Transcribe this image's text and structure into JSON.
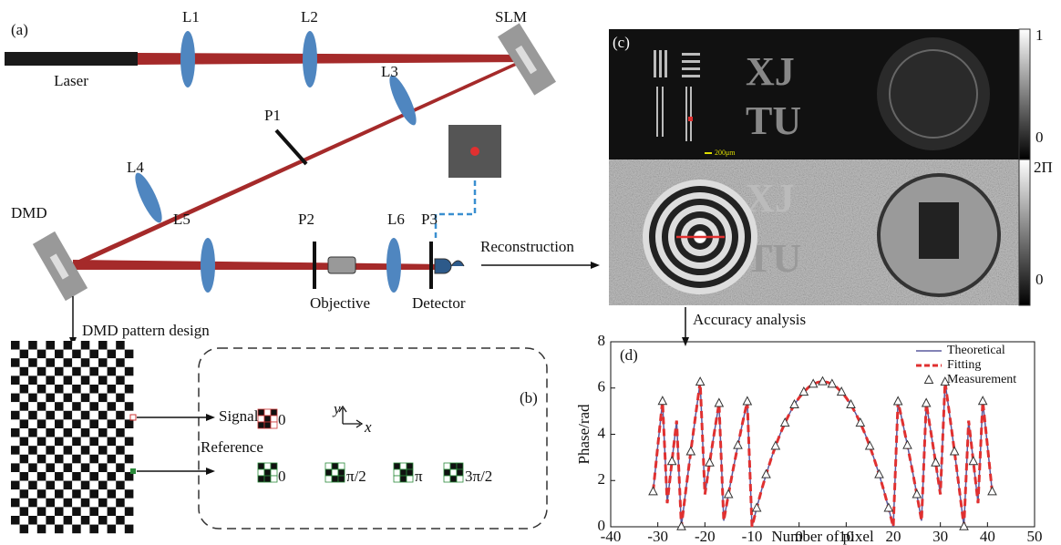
{
  "panel_a": {
    "label": "(a)",
    "laser": "Laser",
    "l1": "L1",
    "l2": "L2",
    "slm": "SLM",
    "l3": "L3",
    "p1": "P1",
    "l4": "L4",
    "l5": "L5",
    "dmd": "DMD",
    "p2": "P2",
    "l6": "L6",
    "p3": "P3",
    "objective": "Objective",
    "detector": "Detector",
    "reconstruction": "Reconstruction",
    "dmd_pattern": "DMD pattern design",
    "accuracy": "Accuracy analysis"
  },
  "panel_b": {
    "label": "(b)",
    "signal": "Signal",
    "signal_phase": "0",
    "reference": "Reference",
    "reference_phases": [
      "0",
      "π/2",
      "π",
      "3π/2"
    ],
    "axis_y": "y",
    "axis_x": "x"
  },
  "panel_c": {
    "label": "(c)",
    "scale_bar": "200μm",
    "image_text": [
      "XJ",
      "TU"
    ],
    "amplitude_colorbar": [
      "1",
      "0"
    ],
    "phase_colorbar": [
      "2Π",
      "0"
    ]
  },
  "chart_data": {
    "type": "line",
    "label": "(d)",
    "xlabel": "Number of pixel",
    "ylabel": "Phase/rad",
    "xlim": [
      -40,
      50
    ],
    "xticks": [
      -40,
      -30,
      -20,
      -10,
      0,
      10,
      20,
      30,
      40,
      50
    ],
    "ylim": [
      0,
      8
    ],
    "yticks": [
      0,
      2,
      4,
      6,
      8
    ],
    "legend": "upper right",
    "x": [
      -31,
      -30,
      -29,
      -28,
      -27,
      -26,
      -25,
      -24,
      -23,
      -22,
      -21,
      -20,
      -19,
      -18,
      -17,
      -16,
      -15,
      -14,
      -13,
      -12,
      -11,
      -10,
      -9,
      -8,
      -7,
      -6,
      -5,
      -4,
      -3,
      -2,
      -1,
      0,
      1,
      2,
      3,
      4,
      5,
      6,
      7,
      8,
      9,
      10,
      11,
      12,
      13,
      14,
      15,
      16,
      17,
      18,
      19,
      20,
      21,
      22,
      23,
      24,
      25,
      26,
      27,
      28,
      29,
      30,
      31,
      32,
      33,
      34,
      35,
      36,
      37,
      38,
      39,
      40,
      41
    ],
    "series": [
      {
        "name": "Theoretical",
        "color": "#5a5a9e",
        "line_style": "solid",
        "values": [
          1.52,
          3.5,
          5.43,
          1.02,
          2.83,
          4.59,
          0.01,
          1.66,
          3.25,
          4.78,
          6.26,
          1.4,
          2.77,
          4.08,
          5.34,
          0.26,
          1.4,
          2.49,
          3.52,
          4.5,
          5.42,
          0.0,
          0.81,
          1.57,
          2.26,
          2.9,
          3.49,
          4.02,
          4.49,
          4.91,
          5.28,
          5.58,
          5.83,
          6.03,
          6.17,
          6.25,
          6.28,
          6.25,
          6.17,
          6.03,
          5.83,
          5.58,
          5.28,
          4.91,
          4.49,
          4.02,
          3.49,
          2.9,
          2.26,
          1.57,
          0.81,
          0.0,
          5.42,
          4.5,
          3.52,
          2.49,
          1.4,
          0.26,
          5.34,
          4.08,
          2.77,
          1.4,
          6.26,
          4.78,
          3.25,
          1.66,
          0.01,
          4.59,
          2.83,
          1.02,
          5.43,
          3.5,
          1.52
        ]
      },
      {
        "name": "Fitting",
        "color": "#e03030",
        "line_style": "dashed",
        "values": [
          1.52,
          3.5,
          5.43,
          1.02,
          2.83,
          4.59,
          0.01,
          1.66,
          3.25,
          4.78,
          6.26,
          1.4,
          2.77,
          4.08,
          5.34,
          0.26,
          1.4,
          2.49,
          3.52,
          4.5,
          5.42,
          0.0,
          0.81,
          1.57,
          2.26,
          2.9,
          3.49,
          4.02,
          4.49,
          4.91,
          5.28,
          5.58,
          5.83,
          6.03,
          6.17,
          6.25,
          6.28,
          6.25,
          6.17,
          6.03,
          5.83,
          5.58,
          5.28,
          4.91,
          4.49,
          4.02,
          3.49,
          2.9,
          2.26,
          1.57,
          0.81,
          0.0,
          5.42,
          4.5,
          3.52,
          2.49,
          1.4,
          0.26,
          5.34,
          4.08,
          2.77,
          1.4,
          6.26,
          4.78,
          3.25,
          1.66,
          0.01,
          4.59,
          2.83,
          1.02,
          5.43,
          3.5,
          1.52
        ]
      },
      {
        "name": "Measurement",
        "color": "#333333",
        "marker": "triangle",
        "x": [
          -31,
          -29,
          -27,
          -25,
          -23,
          -21,
          -19,
          -17,
          -15,
          -13,
          -11,
          -9,
          -7,
          -5,
          -3,
          -1,
          1,
          3,
          5,
          7,
          9,
          11,
          13,
          15,
          17,
          19,
          21,
          23,
          25,
          27,
          29,
          31,
          33,
          35,
          37,
          39,
          41
        ],
        "values": [
          1.52,
          5.43,
          2.83,
          0.01,
          3.25,
          6.26,
          2.77,
          5.34,
          1.4,
          3.52,
          5.42,
          0.81,
          2.26,
          3.49,
          4.49,
          5.28,
          5.83,
          6.17,
          6.28,
          6.17,
          5.83,
          5.28,
          4.49,
          3.49,
          2.26,
          0.81,
          5.42,
          3.52,
          1.4,
          5.34,
          2.77,
          6.26,
          3.25,
          0.01,
          2.83,
          5.43,
          1.52
        ]
      }
    ]
  }
}
